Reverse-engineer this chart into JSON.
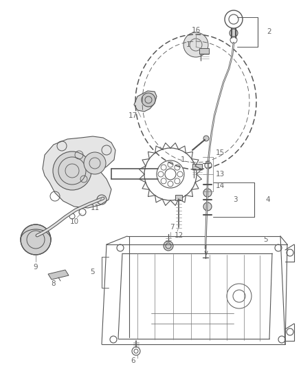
{
  "background_color": "#ffffff",
  "line_color": "#555555",
  "label_color": "#666666",
  "figure_width": 4.38,
  "figure_height": 5.33,
  "dpi": 100
}
